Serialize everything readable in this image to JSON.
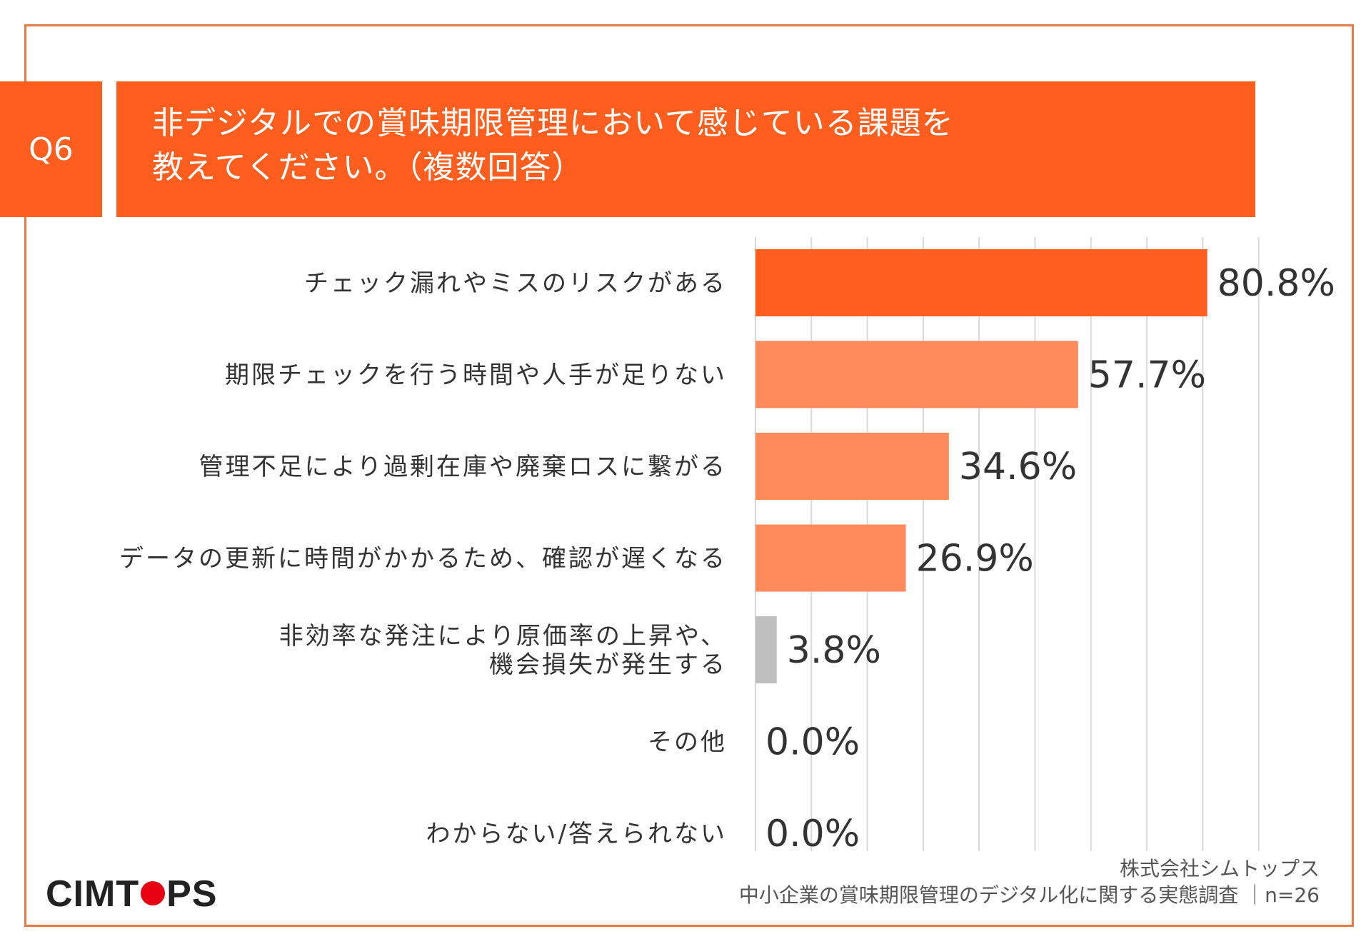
{
  "header": {
    "question_no": "Q6",
    "title_line1": "非デジタルでの賞味期限管理において感じている課題を",
    "title_line2": "教えてください。（複数回答）"
  },
  "colors": {
    "accent": "#ff5e1f",
    "bar_main": "#ff5e1f",
    "bar_light": "#ff8a5b",
    "bar_gray": "#bfbfbf",
    "frame": "#e77b45",
    "logo_dot": "#e60012"
  },
  "chart_data": {
    "type": "bar",
    "orientation": "horizontal",
    "categories": [
      [
        "チェック漏れやミスのリスクがある"
      ],
      [
        "期限チェックを行う時間や人手が足りない"
      ],
      [
        "管理不足により過剰在庫や廃棄ロスに繋がる"
      ],
      [
        "データの更新に時間がかかるため、確認が遅くなる"
      ],
      [
        "非効率な発注により原価率の上昇や、",
        "機会損失が発生する"
      ],
      [
        "その他"
      ],
      [
        "わからない/答えられない"
      ]
    ],
    "values": [
      80.8,
      57.7,
      34.6,
      26.9,
      3.8,
      0.0,
      0.0
    ],
    "value_labels": [
      "80.8%",
      "57.7%",
      "34.6%",
      "26.9%",
      "3.8%",
      "0.0%",
      "0.0%"
    ],
    "xlim": [
      0,
      90
    ],
    "grid": true,
    "unit": "%"
  },
  "footer": {
    "logo_left": "CIMT",
    "logo_right": "PS",
    "source_line1": "株式会社シムトップス",
    "source_line2": "中小企業の賞味期限管理のデジタル化に関する実態調査 ｜n=26"
  }
}
